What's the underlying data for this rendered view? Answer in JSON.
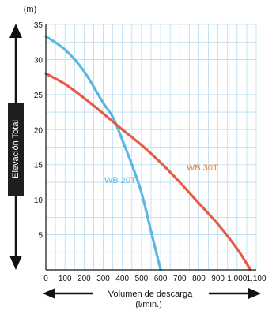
{
  "chart_data": {
    "type": "line",
    "title": "",
    "xlabel": "Volumen de descarga",
    "xunit": "(l/min.)",
    "ylabel": "Elevación Total",
    "yunit": "(m)",
    "xlim": [
      0,
      1100
    ],
    "ylim": [
      0,
      35
    ],
    "xticks": [
      0,
      100,
      200,
      300,
      400,
      500,
      600,
      700,
      800,
      900,
      1000,
      1100
    ],
    "xtick_labels": [
      "0",
      "100",
      "200",
      "300",
      "400",
      "500",
      "600",
      "700",
      "800",
      "900",
      "1.000",
      "1.100"
    ],
    "yticks": [
      5,
      10,
      15,
      20,
      25,
      30,
      35
    ],
    "grid": true,
    "series": [
      {
        "name": "WB 20T",
        "color": "#5bb8e4",
        "x": [
          0,
          100,
          200,
          300,
          350,
          400,
          450,
          500,
          550,
          600
        ],
        "y": [
          33.3,
          31.4,
          28.3,
          23.8,
          21.8,
          18.5,
          15.0,
          11.0,
          5.5,
          0
        ]
      },
      {
        "name": "WB 30T",
        "color": "#e85a45",
        "x": [
          0,
          100,
          200,
          300,
          400,
          500,
          600,
          700,
          800,
          900,
          1000,
          1070
        ],
        "y": [
          28.0,
          26.5,
          24.5,
          22.3,
          20.0,
          17.8,
          15.3,
          12.5,
          9.5,
          6.5,
          3.0,
          0
        ]
      }
    ],
    "series_label_colors": {
      "WB 20T": "#5bb8e4",
      "WB 30T": "#f07a28"
    }
  },
  "ui": {
    "grid_color": "#b9dcef",
    "axis_color": "#111111",
    "label_box_color": "#1e1e1e",
    "label_box_text_color": "#ffffff"
  }
}
